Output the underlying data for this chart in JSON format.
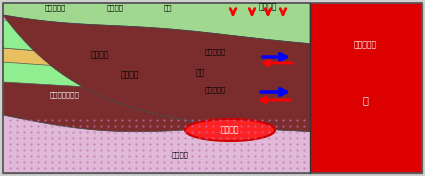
{
  "colors": {
    "sea": "#dd0000",
    "upper_sand": "#90ee90",
    "clay": "#e8c060",
    "lower_sand": "#90ee90",
    "basement": "#7B2D2D",
    "granite": "#e0b8d8",
    "granite_dot": "#c070b0",
    "pink_strip": "#dda0c0",
    "surface_green": "#a0d890",
    "fossil_fill": "#ff2222",
    "fossil_edge": "#cc0000",
    "bg": "#d0d0d0",
    "border": "#555555"
  },
  "labels": {
    "top1": "浅部堆積物",
    "top2": "後背湿地",
    "top3": "浜提",
    "tsunami": "津波浸水",
    "sea_intrusion": "海水の侵入",
    "sea": "海",
    "upper_sand": "上部砂層",
    "shallow_aq": "浅部帯水層",
    "clay": "粘土",
    "lower_sand": "下部砂層",
    "deep_aq": "深部帯水層",
    "basement": "鮮新世基盤岩類",
    "granite": "花崗岩類",
    "fossil": "化石塩水"
  }
}
